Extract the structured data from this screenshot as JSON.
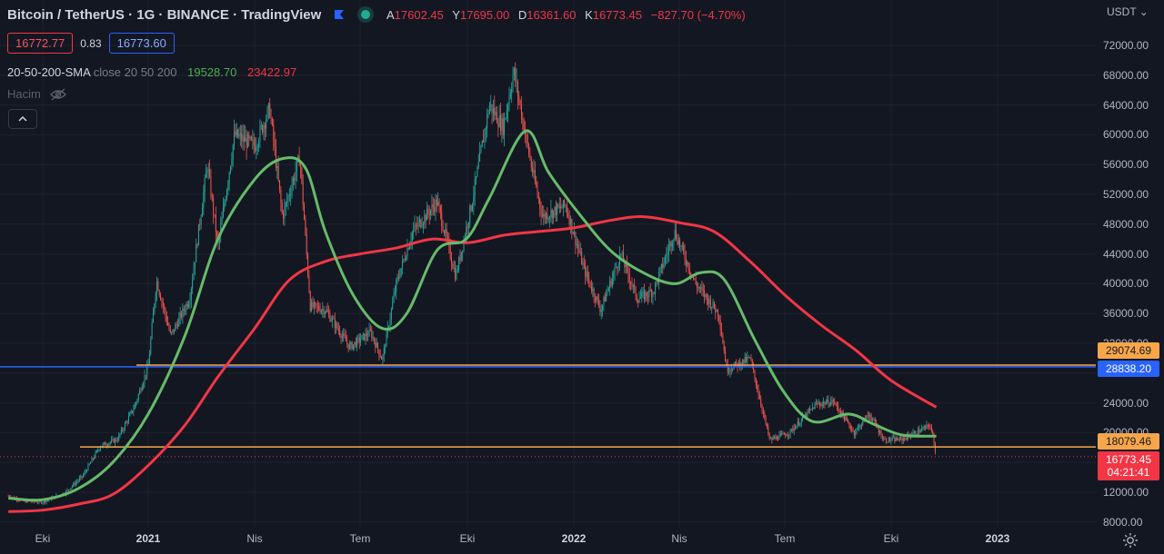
{
  "header": {
    "title": "Bitcoin / TetherUS · 1G · BINANCE · TradingView",
    "ohlc": [
      {
        "key": "A",
        "value": "17602.45"
      },
      {
        "key": "Y",
        "value": "17695.00"
      },
      {
        "key": "D",
        "value": "16361.60"
      },
      {
        "key": "K",
        "value": "16773.45"
      }
    ],
    "change": "−827.70 (−4.70%)"
  },
  "quote": {
    "bid": "16772.77",
    "spread": "0.83",
    "ask": "16773.60"
  },
  "indicator": {
    "name": "20-50-200-SMA",
    "params": "close 20 50 200",
    "sma_mid": "19528.70",
    "sma_long": "23422.97"
  },
  "volume": {
    "label": "Hacim",
    "icon": "eye-off-icon"
  },
  "colors": {
    "bg": "#131722",
    "up": "#26a69a",
    "down": "#ef5350",
    "sma_green": "#66bb6a",
    "sma_red": "#f23645",
    "orange": "#f7a64a",
    "blue": "#2962ff"
  },
  "axis": {
    "unit": "USDT",
    "y_ticks": [
      "72000.00",
      "68000.00",
      "64000.00",
      "60000.00",
      "56000.00",
      "52000.00",
      "48000.00",
      "44000.00",
      "40000.00",
      "36000.00",
      "32000.00",
      "28000.00",
      "24000.00",
      "20000.00",
      "16000.00",
      "12000.00",
      "8000.00"
    ],
    "x_ticks": [
      "Eki",
      "2021",
      "Nis",
      "Tem",
      "Eki",
      "2022",
      "Nis",
      "Tem",
      "Eki",
      "2023"
    ]
  },
  "price_tags": [
    {
      "label": "29074.69",
      "color": "#f7a64a",
      "text_color": "#131722"
    },
    {
      "label": "28838.20",
      "color": "#2962ff",
      "text_color": "#ffffff"
    },
    {
      "label": "18079.46",
      "color": "#f7a64a",
      "text_color": "#131722"
    },
    {
      "label": "16773.45",
      "sub": "04:21:41",
      "color": "#f23645",
      "text_color": "#ffffff"
    }
  ],
  "chart_data": {
    "type": "line",
    "ylim": [
      8000,
      72000
    ],
    "horizontal_lines": [
      {
        "price": 29074.69,
        "color": "#f7a64a"
      },
      {
        "price": 28838.2,
        "color": "#2962ff"
      },
      {
        "price": 18079.46,
        "color": "#f7a64a"
      }
    ],
    "close_series": {
      "name": "",
      "points": [
        [
          "2020-09-01",
          11500
        ],
        [
          "2020-09-15",
          10800
        ],
        [
          "2020-10-01",
          10700
        ],
        [
          "2020-10-20",
          11900
        ],
        [
          "2020-11-05",
          14200
        ],
        [
          "2020-11-20",
          18200
        ],
        [
          "2020-12-05",
          19100
        ],
        [
          "2020-12-20",
          23500
        ],
        [
          "2021-01-01",
          29000
        ],
        [
          "2021-01-08",
          40500
        ],
        [
          "2021-01-20",
          33000
        ],
        [
          "2021-02-05",
          38000
        ],
        [
          "2021-02-20",
          56000
        ],
        [
          "2021-03-01",
          45000
        ],
        [
          "2021-03-15",
          60000
        ],
        [
          "2021-04-01",
          58500
        ],
        [
          "2021-04-14",
          63500
        ],
        [
          "2021-04-25",
          49000
        ],
        [
          "2021-05-10",
          57000
        ],
        [
          "2021-05-19",
          37000
        ],
        [
          "2021-06-01",
          36500
        ],
        [
          "2021-06-22",
          31500
        ],
        [
          "2021-07-10",
          33500
        ],
        [
          "2021-07-20",
          29800
        ],
        [
          "2021-08-01",
          40000
        ],
        [
          "2021-08-15",
          47000
        ],
        [
          "2021-09-05",
          51000
        ],
        [
          "2021-09-21",
          41000
        ],
        [
          "2021-10-05",
          51000
        ],
        [
          "2021-10-20",
          64000
        ],
        [
          "2021-11-01",
          61000
        ],
        [
          "2021-11-10",
          68500
        ],
        [
          "2021-11-25",
          56000
        ],
        [
          "2021-12-05",
          49000
        ],
        [
          "2021-12-25",
          50500
        ],
        [
          "2022-01-10",
          41800
        ],
        [
          "2022-01-24",
          36500
        ],
        [
          "2022-02-10",
          44000
        ],
        [
          "2022-02-24",
          38000
        ],
        [
          "2022-03-10",
          39000
        ],
        [
          "2022-03-28",
          47000
        ],
        [
          "2022-04-15",
          40000
        ],
        [
          "2022-05-05",
          36000
        ],
        [
          "2022-05-12",
          28500
        ],
        [
          "2022-06-01",
          30000
        ],
        [
          "2022-06-18",
          19000
        ],
        [
          "2022-07-05",
          20000
        ],
        [
          "2022-07-28",
          23800
        ],
        [
          "2022-08-12",
          24200
        ],
        [
          "2022-08-30",
          20000
        ],
        [
          "2022-09-12",
          22500
        ],
        [
          "2022-09-25",
          19000
        ],
        [
          "2022-10-10",
          19100
        ],
        [
          "2022-10-30",
          20600
        ],
        [
          "2022-11-04",
          21000
        ],
        [
          "2022-11-09",
          16773.45
        ]
      ]
    },
    "sma_50": {
      "name": "",
      "points": [
        [
          "2020-09-01",
          11200
        ],
        [
          "2020-10-01",
          11000
        ],
        [
          "2020-11-01",
          12500
        ],
        [
          "2020-12-01",
          16000
        ],
        [
          "2021-01-01",
          22500
        ],
        [
          "2021-02-01",
          33000
        ],
        [
          "2021-03-01",
          46000
        ],
        [
          "2021-04-01",
          54000
        ],
        [
          "2021-04-25",
          56800
        ],
        [
          "2021-05-15",
          55500
        ],
        [
          "2021-06-01",
          47000
        ],
        [
          "2021-06-25",
          38500
        ],
        [
          "2021-07-20",
          34000
        ],
        [
          "2021-08-10",
          36000
        ],
        [
          "2021-09-05",
          44500
        ],
        [
          "2021-09-30",
          46000
        ],
        [
          "2021-10-20",
          51500
        ],
        [
          "2021-11-20",
          60500
        ],
        [
          "2021-12-10",
          55000
        ],
        [
          "2022-01-05",
          49500
        ],
        [
          "2022-02-01",
          44500
        ],
        [
          "2022-03-01",
          41500
        ],
        [
          "2022-03-28",
          40000
        ],
        [
          "2022-04-20",
          41500
        ],
        [
          "2022-05-10",
          40500
        ],
        [
          "2022-06-05",
          32500
        ],
        [
          "2022-06-30",
          25500
        ],
        [
          "2022-07-25",
          21500
        ],
        [
          "2022-08-25",
          22500
        ],
        [
          "2022-09-15",
          21200
        ],
        [
          "2022-10-10",
          19700
        ],
        [
          "2022-11-09",
          19528.7
        ]
      ]
    },
    "sma_200": {
      "name": "",
      "points": [
        [
          "2020-09-01",
          9400
        ],
        [
          "2020-10-01",
          9600
        ],
        [
          "2020-11-01",
          10400
        ],
        [
          "2020-12-01",
          11700
        ],
        [
          "2021-01-01",
          15600
        ],
        [
          "2021-02-01",
          21000
        ],
        [
          "2021-03-01",
          27500
        ],
        [
          "2021-04-01",
          34000
        ],
        [
          "2021-05-01",
          40500
        ],
        [
          "2021-06-01",
          43000
        ],
        [
          "2021-07-01",
          44000
        ],
        [
          "2021-08-01",
          44800
        ],
        [
          "2021-09-01",
          46000
        ],
        [
          "2021-10-01",
          45500
        ],
        [
          "2021-11-01",
          46500
        ],
        [
          "2021-12-01",
          47000
        ],
        [
          "2022-01-01",
          47500
        ],
        [
          "2022-02-01",
          48500
        ],
        [
          "2022-03-01",
          49000
        ],
        [
          "2022-04-01",
          48200
        ],
        [
          "2022-05-01",
          47000
        ],
        [
          "2022-06-01",
          43000
        ],
        [
          "2022-07-01",
          38500
        ],
        [
          "2022-08-01",
          34500
        ],
        [
          "2022-09-01",
          31000
        ],
        [
          "2022-10-01",
          27000
        ],
        [
          "2022-11-09",
          23422.97
        ]
      ]
    }
  }
}
